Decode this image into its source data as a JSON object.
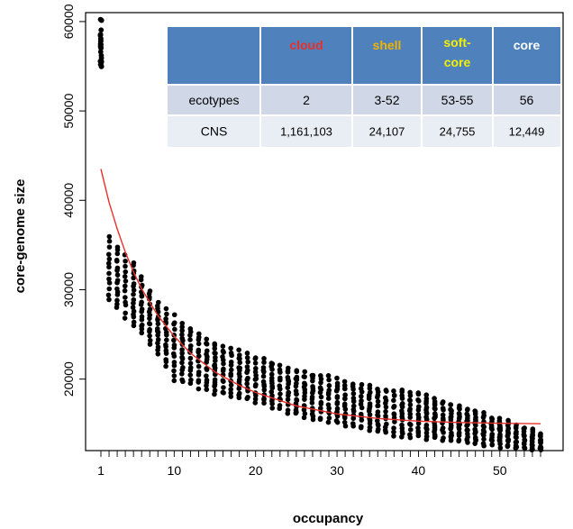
{
  "chart_data": {
    "type": "scatter",
    "title": "",
    "xlabel": "occupancy",
    "ylabel": "core-genome size",
    "xlim": [
      1,
      55
    ],
    "ylim": [
      12000,
      61000
    ],
    "x_ticks": [
      1,
      10,
      20,
      30,
      40,
      50
    ],
    "y_ticks": [
      20000,
      30000,
      40000,
      50000,
      60000
    ],
    "grid": false,
    "points_description_envelope": {
      "x": [
        2,
        5,
        8,
        10,
        15,
        20,
        25,
        30,
        35,
        40,
        45,
        50,
        55
      ],
      "upper": [
        35800,
        33000,
        28500,
        27000,
        24000,
        22500,
        21000,
        20000,
        19000,
        18500,
        17000,
        15500,
        14000
      ],
      "lower": [
        29000,
        26000,
        23000,
        20000,
        18500,
        17500,
        16000,
        15000,
        14000,
        13500,
        13000,
        12500,
        12000
      ]
    },
    "x1_cluster": {
      "x": 1,
      "ymin": 54500,
      "ymax": 60500
    },
    "fit_curve": {
      "color": "#e8302a",
      "x": [
        1,
        2,
        3,
        4,
        5,
        6,
        8,
        10,
        12,
        15,
        18,
        20,
        25,
        30,
        35,
        40,
        45,
        50,
        55
      ],
      "y": [
        43500,
        39800,
        36800,
        34200,
        32000,
        30100,
        27100,
        24800,
        22900,
        20800,
        19300,
        18500,
        17000,
        16100,
        15600,
        15300,
        15150,
        15050,
        15000
      ]
    },
    "table": {
      "header_bg": "#4f81bd",
      "row_bg": [
        "#d0d8e8",
        "#e9edf4"
      ],
      "columns": [
        {
          "label": "",
          "color": "#ffffff"
        },
        {
          "label": "cloud",
          "color": "#e8302a"
        },
        {
          "label": "shell",
          "color": "#f0b400"
        },
        {
          "label": "soft-core",
          "lines": [
            "soft-",
            "core"
          ],
          "color": "#f4f000"
        },
        {
          "label": "core",
          "color": "#ffffff"
        }
      ],
      "rows": [
        [
          "ecotypes",
          "2",
          "3-52",
          "53-55",
          "56"
        ],
        [
          "CNS",
          "1,161,103",
          "24,107",
          "24,755",
          "12,449"
        ]
      ]
    }
  }
}
